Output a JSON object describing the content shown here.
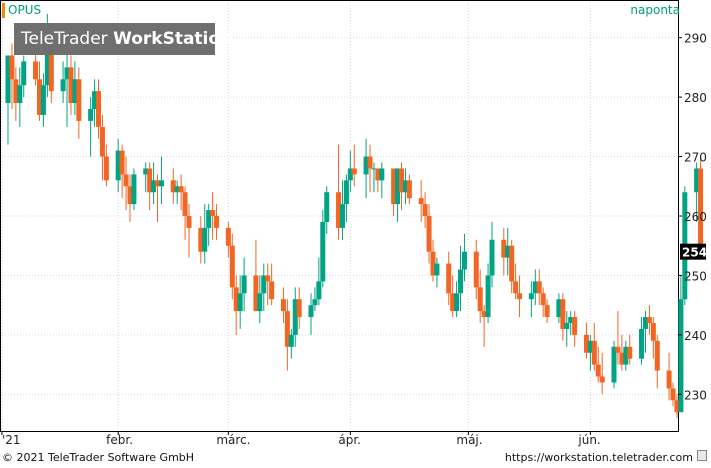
{
  "header": {
    "symbol": "OPUS",
    "period": "naponta",
    "brand_light": "TeleTrader ",
    "brand_bold": "WorkStation"
  },
  "footer": {
    "copyright": "© 2021 TeleTrader Software GmbH",
    "url": "https://workstation.teletrader.com"
  },
  "colors": {
    "up": "#00a383",
    "down": "#f26522",
    "grid": "#d9d9d9",
    "badge_bg": "#6f6f6f",
    "last_price_bg": "#000000"
  },
  "chart_data": {
    "type": "candlestick",
    "x_tick_labels": [
      "'21",
      "febr.",
      "márc.",
      "ápr.",
      "máj.",
      "jún."
    ],
    "y_ticks": [
      230,
      240,
      250,
      260,
      270,
      280,
      290
    ],
    "ylim": [
      224,
      296
    ],
    "y_axis_side": "right",
    "grid": true,
    "last_price": "254",
    "first_date": "2021-01-04",
    "candles": [
      [
        "2021-01-04",
        279,
        287,
        272,
        287
      ],
      [
        "2021-01-05",
        287,
        289,
        278,
        283
      ],
      [
        "2021-01-06",
        283,
        285,
        276,
        279
      ],
      [
        "2021-01-07",
        279,
        285,
        275,
        282
      ],
      [
        "2021-01-08",
        282,
        287,
        280,
        286
      ],
      [
        "2021-01-11",
        286,
        290,
        282,
        283
      ],
      [
        "2021-01-12",
        283,
        286,
        276,
        277
      ],
      [
        "2021-01-13",
        277,
        284,
        275,
        282
      ],
      [
        "2021-01-14",
        282,
        294,
        280,
        289
      ],
      [
        "2021-01-15",
        289,
        291,
        279,
        281
      ],
      [
        "2021-01-18",
        281,
        286,
        279,
        283
      ],
      [
        "2021-01-19",
        283,
        288,
        275,
        285
      ],
      [
        "2021-01-20",
        285,
        287,
        277,
        279
      ],
      [
        "2021-01-21",
        279,
        286,
        277,
        283
      ],
      [
        "2021-01-22",
        283,
        285,
        273,
        276
      ],
      [
        "2021-01-25",
        276,
        280,
        270,
        278
      ],
      [
        "2021-01-26",
        278,
        283,
        275,
        281
      ],
      [
        "2021-01-27",
        281,
        283,
        273,
        275
      ],
      [
        "2021-01-28",
        275,
        277,
        266,
        270
      ],
      [
        "2021-01-29",
        270,
        272,
        265,
        266
      ],
      [
        "2021-02-01",
        266,
        273,
        264,
        271
      ],
      [
        "2021-02-02",
        271,
        272,
        263,
        267
      ],
      [
        "2021-02-03",
        267,
        270,
        261,
        265
      ],
      [
        "2021-02-04",
        265,
        267,
        259,
        262
      ],
      [
        "2021-02-05",
        262,
        268,
        261,
        267
      ],
      [
        "2021-02-08",
        267,
        269,
        264,
        268
      ],
      [
        "2021-02-09",
        268,
        269,
        261,
        264
      ],
      [
        "2021-02-10",
        264,
        269,
        262,
        266
      ],
      [
        "2021-02-11",
        266,
        267,
        259,
        265
      ],
      [
        "2021-02-12",
        265,
        270,
        262,
        266
      ],
      [
        "2021-02-15",
        266,
        268,
        262,
        264
      ],
      [
        "2021-02-16",
        264,
        266,
        262,
        265
      ],
      [
        "2021-02-17",
        265,
        267,
        261,
        264
      ],
      [
        "2021-02-18",
        264,
        265,
        256,
        260
      ],
      [
        "2021-02-19",
        260,
        262,
        253,
        258
      ],
      [
        "2021-02-22",
        258,
        260,
        252,
        254
      ],
      [
        "2021-02-23",
        254,
        262,
        252,
        258
      ],
      [
        "2021-02-24",
        258,
        262,
        255,
        261
      ],
      [
        "2021-02-25",
        261,
        264,
        256,
        260
      ],
      [
        "2021-02-26",
        260,
        262,
        256,
        258
      ],
      [
        "2021-03-01",
        258,
        259,
        253,
        255
      ],
      [
        "2021-03-02",
        255,
        257,
        246,
        248
      ],
      [
        "2021-03-03",
        248,
        250,
        240,
        244
      ],
      [
        "2021-03-04",
        244,
        250,
        241,
        247
      ],
      [
        "2021-03-05",
        247,
        253,
        244,
        250
      ],
      [
        "2021-03-08",
        250,
        256,
        244,
        244
      ],
      [
        "2021-03-09",
        244,
        250,
        242,
        247
      ],
      [
        "2021-03-10",
        247,
        252,
        244,
        250
      ],
      [
        "2021-03-11",
        250,
        252,
        245,
        249
      ],
      [
        "2021-03-12",
        249,
        252,
        245,
        246
      ],
      [
        "2021-03-15",
        246,
        248,
        242,
        244
      ],
      [
        "2021-03-16",
        244,
        246,
        234,
        238
      ],
      [
        "2021-03-17",
        238,
        241,
        236,
        240
      ],
      [
        "2021-03-18",
        240,
        248,
        238,
        246
      ],
      [
        "2021-03-19",
        246,
        248,
        241,
        243
      ],
      [
        "2021-03-22",
        243,
        247,
        240,
        245
      ],
      [
        "2021-03-23",
        245,
        248,
        244,
        246
      ],
      [
        "2021-03-24",
        246,
        253,
        245,
        249
      ],
      [
        "2021-03-25",
        249,
        261,
        248,
        259
      ],
      [
        "2021-03-26",
        259,
        265,
        257,
        264
      ],
      [
        "2021-03-29",
        264,
        272,
        256,
        258
      ],
      [
        "2021-03-30",
        258,
        266,
        256,
        262
      ],
      [
        "2021-03-31",
        262,
        267,
        259,
        266
      ],
      [
        "2021-04-01",
        266,
        271,
        264,
        268
      ],
      [
        "2021-04-02",
        268,
        272,
        265,
        267
      ],
      [
        "2021-04-05",
        267,
        273,
        263,
        270
      ],
      [
        "2021-04-06",
        270,
        272,
        264,
        268
      ],
      [
        "2021-04-07",
        268,
        269,
        264,
        268
      ],
      [
        "2021-04-08",
        268,
        268,
        264,
        266
      ],
      [
        "2021-04-09",
        266,
        269,
        263,
        268
      ],
      [
        "2021-04-12",
        268,
        268,
        260,
        262
      ],
      [
        "2021-04-13",
        262,
        268,
        259,
        268
      ],
      [
        "2021-04-14",
        268,
        269,
        261,
        264
      ],
      [
        "2021-04-15",
        264,
        268,
        262,
        266
      ],
      [
        "2021-04-16",
        266,
        267,
        262,
        263
      ],
      [
        "2021-04-19",
        263,
        266,
        259,
        262
      ],
      [
        "2021-04-20",
        262,
        264,
        258,
        260
      ],
      [
        "2021-04-21",
        260,
        262,
        252,
        254
      ],
      [
        "2021-04-22",
        254,
        256,
        249,
        250
      ],
      [
        "2021-04-23",
        250,
        253,
        248,
        252
      ],
      [
        "2021-04-26",
        252,
        254,
        245,
        247
      ],
      [
        "2021-04-27",
        247,
        250,
        243,
        244
      ],
      [
        "2021-04-28",
        244,
        249,
        243,
        247
      ],
      [
        "2021-04-29",
        247,
        255,
        244,
        251
      ],
      [
        "2021-04-30",
        251,
        257,
        249,
        254
      ],
      [
        "2021-05-03",
        254,
        256,
        246,
        248
      ],
      [
        "2021-05-04",
        248,
        251,
        242,
        244
      ],
      [
        "2021-05-05",
        244,
        245,
        238,
        243
      ],
      [
        "2021-05-06",
        243,
        252,
        242,
        250
      ],
      [
        "2021-05-07",
        250,
        259,
        248,
        256
      ],
      [
        "2021-05-10",
        256,
        258,
        250,
        253
      ],
      [
        "2021-05-11",
        253,
        258,
        250,
        255
      ],
      [
        "2021-05-12",
        255,
        256,
        247,
        249
      ],
      [
        "2021-05-13",
        249,
        252,
        246,
        247
      ],
      [
        "2021-05-14",
        247,
        250,
        243,
        246
      ],
      [
        "2021-05-17",
        246,
        249,
        243,
        247
      ],
      [
        "2021-05-18",
        247,
        251,
        245,
        249
      ],
      [
        "2021-05-19",
        249,
        251,
        245,
        247
      ],
      [
        "2021-05-20",
        247,
        248,
        243,
        245
      ],
      [
        "2021-05-21",
        245,
        246,
        242,
        243
      ],
      [
        "2021-05-24",
        243,
        247,
        242,
        246
      ],
      [
        "2021-05-25",
        246,
        247,
        239,
        241
      ],
      [
        "2021-05-26",
        241,
        244,
        238,
        242
      ],
      [
        "2021-05-27",
        242,
        244,
        240,
        243
      ],
      [
        "2021-05-28",
        243,
        244,
        238,
        240
      ],
      [
        "2021-05-31",
        240,
        242,
        236,
        237
      ],
      [
        "2021-06-01",
        237,
        240,
        234,
        239
      ],
      [
        "2021-06-02",
        239,
        242,
        234,
        235
      ],
      [
        "2021-06-03",
        235,
        238,
        232,
        233
      ],
      [
        "2021-06-04",
        233,
        237,
        230,
        232
      ],
      [
        "2021-06-07",
        232,
        239,
        231,
        238
      ],
      [
        "2021-06-08",
        238,
        244,
        235,
        237
      ],
      [
        "2021-06-09",
        237,
        240,
        234,
        235
      ],
      [
        "2021-06-10",
        235,
        239,
        234,
        238
      ],
      [
        "2021-06-11",
        238,
        240,
        235,
        236
      ],
      [
        "2021-06-14",
        236,
        243,
        235,
        241
      ],
      [
        "2021-06-15",
        241,
        244,
        237,
        243
      ],
      [
        "2021-06-16",
        243,
        245,
        240,
        242
      ],
      [
        "2021-06-17",
        242,
        243,
        236,
        239
      ],
      [
        "2021-06-18",
        239,
        240,
        231,
        234
      ],
      [
        "2021-06-21",
        234,
        237,
        229,
        231
      ],
      [
        "2021-06-22",
        231,
        232,
        228,
        229
      ],
      [
        "2021-06-23",
        229,
        230,
        226,
        227
      ],
      [
        "2021-06-24",
        227,
        250,
        227,
        246
      ],
      [
        "2021-06-25",
        246,
        265,
        245,
        264
      ],
      [
        "2021-06-28",
        264,
        269,
        259,
        268
      ],
      [
        "2021-06-29",
        268,
        270,
        253,
        254
      ]
    ]
  }
}
